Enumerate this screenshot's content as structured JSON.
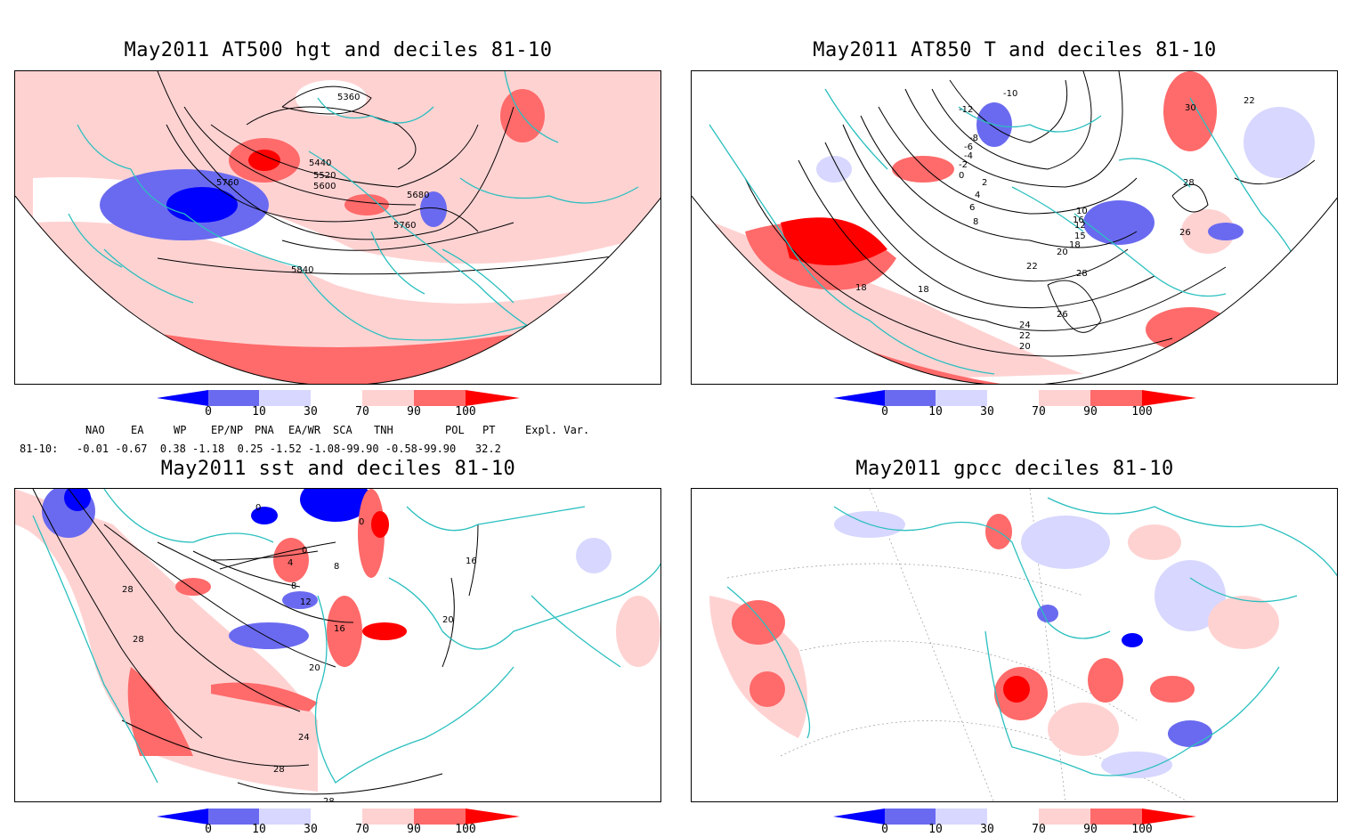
{
  "panels": [
    {
      "title": "May2011 AT500 hgt and deciles 81-10",
      "contour_labels": [
        "5360",
        "5440",
        "5520",
        "5600",
        "5680",
        "5760",
        "5760",
        "5840"
      ]
    },
    {
      "title": "May2011 AT850 T and deciles 81-10",
      "contour_labels": [
        "-12",
        "-10",
        "-8",
        "-6",
        "-4",
        "-2",
        "0",
        "2",
        "4",
        "6",
        "8",
        "10",
        "12",
        "15",
        "16",
        "18",
        "18",
        "18",
        "20",
        "20",
        "22",
        "22",
        "22",
        "24",
        "26",
        "26",
        "28",
        "28",
        "30"
      ]
    },
    {
      "title": "May2011 sst and deciles 81-10",
      "contour_labels": [
        "0",
        "0",
        "0",
        "4",
        "8",
        "8",
        "12",
        "16",
        "16",
        "20",
        "20",
        "24",
        "28",
        "28",
        "28",
        "28"
      ]
    },
    {
      "title": "May2011 gpcc deciles 81-10",
      "contour_labels": []
    }
  ],
  "colorbar": {
    "ticks": [
      "0",
      "10",
      "30",
      "70",
      "90",
      "100"
    ],
    "colors": [
      "#0000ff",
      "#6a6af0",
      "#d7d7ff",
      "#ffffff",
      "#ffd2d2",
      "#ff6a6a",
      "#ff0000"
    ]
  },
  "indices": {
    "header": {
      "nao": "NAO",
      "ea": "EA",
      "wp": "WP",
      "epnp": "EP/NP",
      "pna": "PNA",
      "eawr": "EA/WR",
      "sca": "SCA",
      "tnh": "TNH",
      "pol": "POL",
      "pt": "PT",
      "expl": "Expl. Var."
    },
    "row_label": "81-10:",
    "values": "-0.01 -0.67  0.38 -1.18  0.25 -1.52 -1.08-99.90 -0.58-99.90   32.2"
  },
  "colors": {
    "coast": "#2bbfbf",
    "contour": "#000000",
    "strong_red": "#ff0000",
    "mid_red": "#ff6a6a",
    "light_red": "#ffd2d2",
    "light_blue": "#d7d7ff",
    "mid_blue": "#6a6af0",
    "strong_blue": "#0000ff"
  }
}
